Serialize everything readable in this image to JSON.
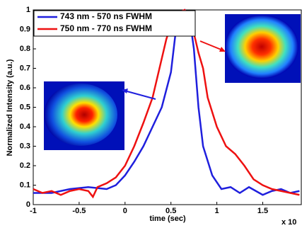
{
  "chart_data": {
    "type": "line",
    "xlabel": "time (sec)",
    "ylabel": "Normalized Intensity (a.u.)",
    "x_multiplier": "x 10",
    "xlim": [
      -1,
      1.92
    ],
    "xticks": [
      -1,
      -0.5,
      0,
      0.5,
      1,
      1.5
    ],
    "ylim": [
      0,
      1
    ],
    "yticks": [
      0,
      0.1,
      0.2,
      0.3,
      0.4,
      0.5,
      0.6,
      0.7,
      0.8,
      0.9,
      1
    ],
    "legend": "upper left",
    "series": [
      {
        "name": "743 nm - 570 ns FWHM",
        "color": "#1f1fdd",
        "x": [
          -1,
          -0.8,
          -0.6,
          -0.4,
          -0.2,
          -0.1,
          0,
          0.1,
          0.2,
          0.3,
          0.4,
          0.5,
          0.55,
          0.6,
          0.65,
          0.7,
          0.75,
          0.8,
          0.85,
          0.95,
          1.05,
          1.15,
          1.25,
          1.35,
          1.5,
          1.6,
          1.7,
          1.8,
          1.9
        ],
        "values": [
          0.06,
          0.06,
          0.08,
          0.09,
          0.08,
          0.1,
          0.15,
          0.22,
          0.3,
          0.4,
          0.5,
          0.68,
          0.88,
          0.98,
          1.0,
          0.97,
          0.8,
          0.5,
          0.3,
          0.15,
          0.08,
          0.09,
          0.06,
          0.09,
          0.05,
          0.07,
          0.08,
          0.06,
          0.07
        ]
      },
      {
        "name": "750 nm - 770 ns FWHM",
        "color": "#ee1111",
        "x": [
          -1,
          -0.9,
          -0.8,
          -0.7,
          -0.6,
          -0.5,
          -0.4,
          -0.35,
          -0.3,
          -0.2,
          -0.1,
          0,
          0.1,
          0.2,
          0.3,
          0.35,
          0.4,
          0.45,
          0.5,
          0.55,
          0.6,
          0.65,
          0.7,
          0.75,
          0.8,
          0.85,
          0.9,
          1.0,
          1.1,
          1.2,
          1.3,
          1.4,
          1.5,
          1.6,
          1.7,
          1.8,
          1.9
        ],
        "values": [
          0.08,
          0.06,
          0.07,
          0.05,
          0.07,
          0.08,
          0.07,
          0.04,
          0.09,
          0.11,
          0.14,
          0.2,
          0.3,
          0.42,
          0.55,
          0.65,
          0.75,
          0.85,
          0.92,
          0.97,
          0.99,
          1.0,
          0.97,
          0.88,
          0.78,
          0.7,
          0.55,
          0.4,
          0.3,
          0.26,
          0.2,
          0.13,
          0.1,
          0.08,
          0.07,
          0.06,
          0.05
        ]
      }
    ]
  }
}
